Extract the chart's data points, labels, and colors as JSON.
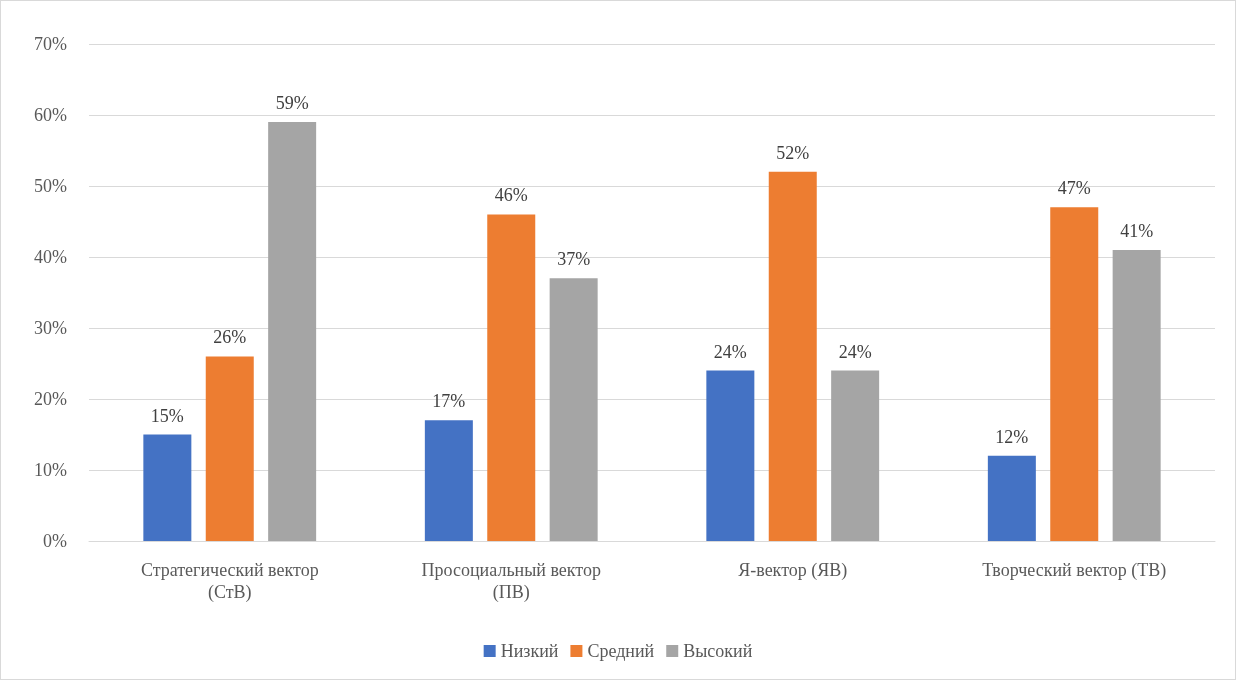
{
  "chart_data": {
    "type": "bar",
    "categories": [
      "Стратегический вектор (СтВ)",
      "Просоциальный вектор (ПВ)",
      "Я-вектор (ЯВ)",
      "Творческий вектор (ТВ)"
    ],
    "series": [
      {
        "name": "Низкий",
        "color": "#4472c4",
        "values": [
          15,
          17,
          24,
          12
        ],
        "value_labels": [
          "15%",
          "17%",
          "24%",
          "12%"
        ]
      },
      {
        "name": "Средний",
        "color": "#ed7d31",
        "values": [
          26,
          46,
          52,
          47
        ],
        "value_labels": [
          "26%",
          "46%",
          "52%",
          "47%"
        ]
      },
      {
        "name": "Высокий",
        "color": "#a5a5a5",
        "values": [
          59,
          37,
          24,
          41
        ],
        "value_labels": [
          "59%",
          "37%",
          "24%",
          "41%"
        ]
      }
    ],
    "ylim": [
      0,
      70
    ],
    "yticks": [
      {
        "value": 0,
        "label": "0%"
      },
      {
        "value": 10,
        "label": "10%"
      },
      {
        "value": 20,
        "label": "20%"
      },
      {
        "value": 30,
        "label": "30%"
      },
      {
        "value": 40,
        "label": "40%"
      },
      {
        "value": 50,
        "label": "50%"
      },
      {
        "value": 60,
        "label": "60%"
      },
      {
        "value": 70,
        "label": "70%"
      }
    ],
    "grid": "y",
    "legend": "bottom"
  }
}
